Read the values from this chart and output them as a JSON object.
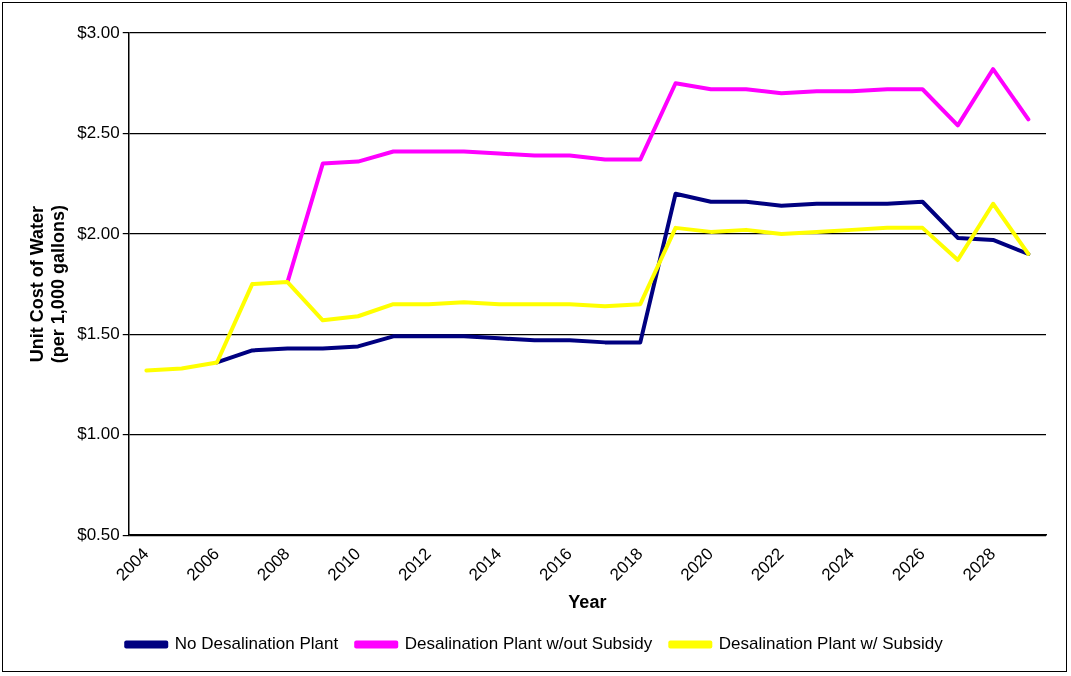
{
  "chart_data": {
    "type": "line",
    "xlabel": "Year",
    "ylabel": "Unit Cost of Water\n(per 1,000 gallons)",
    "categories": [
      "2004",
      null,
      "2006",
      null,
      "2008",
      null,
      "2010",
      null,
      "2012",
      null,
      "2014",
      null,
      "2016",
      null,
      "2018",
      null,
      "2020",
      null,
      "2022",
      null,
      "2024",
      null,
      "2026",
      null,
      "2028",
      null
    ],
    "series": [
      {
        "name": "No Desalination Plant",
        "color": "#000080",
        "values": [
          null,
          null,
          1.36,
          1.42,
          1.43,
          1.43,
          1.44,
          1.49,
          1.49,
          1.49,
          1.48,
          1.47,
          1.47,
          1.46,
          1.46,
          2.2,
          2.16,
          2.16,
          2.14,
          2.15,
          2.15,
          2.15,
          2.16,
          1.98,
          1.97,
          1.9
        ]
      },
      {
        "name": "Desalination Plant w/out Subsidy",
        "color": "#ff00ff",
        "values": [
          null,
          null,
          null,
          null,
          1.76,
          2.35,
          2.36,
          2.41,
          2.41,
          2.41,
          2.4,
          2.39,
          2.39,
          2.37,
          2.37,
          2.75,
          2.72,
          2.72,
          2.7,
          2.71,
          2.71,
          2.72,
          2.72,
          2.54,
          2.82,
          2.57
        ]
      },
      {
        "name": "Desalination Plant w/ Subsidy",
        "color": "#ffff00",
        "values": [
          1.32,
          1.33,
          1.36,
          1.75,
          1.76,
          1.57,
          1.59,
          1.65,
          1.65,
          1.66,
          1.65,
          1.65,
          1.65,
          1.64,
          1.65,
          2.03,
          2.01,
          2.02,
          2.0,
          2.01,
          2.02,
          2.03,
          2.03,
          1.87,
          2.15,
          1.9
        ]
      }
    ],
    "ylim": [
      0.5,
      3.0
    ],
    "yticks": [
      {
        "value": 0.5,
        "label": "$0.50"
      },
      {
        "value": 1.0,
        "label": "$1.00"
      },
      {
        "value": 1.5,
        "label": "$1.50"
      },
      {
        "value": 2.0,
        "label": "$2.00"
      },
      {
        "value": 2.5,
        "label": "$2.50"
      },
      {
        "value": 3.0,
        "label": "$3.00"
      }
    ],
    "grid": "y",
    "legend": "bottom",
    "marker": "none",
    "line_style": "solid"
  }
}
